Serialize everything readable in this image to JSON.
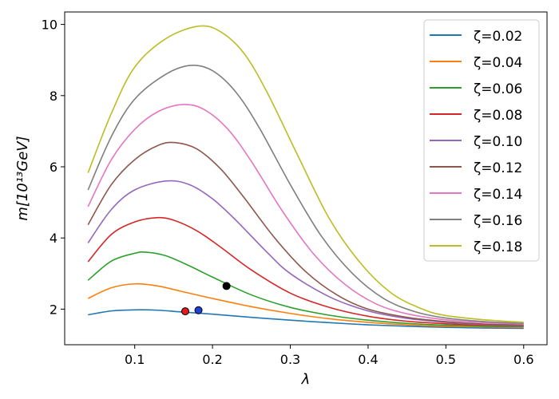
{
  "chart_data": {
    "type": "line",
    "xlabel": "λ",
    "ylabel": "m[10¹³GeV]",
    "xlim": [
      0.01,
      0.63
    ],
    "ylim": [
      1.0,
      10.35
    ],
    "x_ticks": [
      0.1,
      0.2,
      0.3,
      0.4,
      0.5,
      0.6
    ],
    "x_tick_labels": [
      "0.1",
      "0.2",
      "0.3",
      "0.4",
      "0.5",
      "0.6"
    ],
    "y_ticks": [
      2,
      4,
      6,
      8,
      10
    ],
    "y_tick_labels": [
      "2",
      "4",
      "6",
      "8",
      "10"
    ],
    "legend_position": "top-right",
    "series": [
      {
        "name": "ζ=0.02",
        "color": "#1f77b4",
        "x": [
          0.04,
          0.07,
          0.1,
          0.13,
          0.16,
          0.2,
          0.25,
          0.3,
          0.35,
          0.4,
          0.45,
          0.5,
          0.55,
          0.6
        ],
        "y": [
          1.84,
          1.95,
          1.98,
          1.97,
          1.92,
          1.86,
          1.77,
          1.69,
          1.62,
          1.56,
          1.52,
          1.49,
          1.47,
          1.46
        ]
      },
      {
        "name": "ζ=0.04",
        "color": "#ff7f0e",
        "x": [
          0.04,
          0.07,
          0.1,
          0.13,
          0.16,
          0.2,
          0.25,
          0.3,
          0.35,
          0.4,
          0.45,
          0.5,
          0.55,
          0.6
        ],
        "y": [
          2.3,
          2.6,
          2.71,
          2.65,
          2.5,
          2.3,
          2.07,
          1.88,
          1.73,
          1.63,
          1.56,
          1.52,
          1.5,
          1.49
        ]
      },
      {
        "name": "ζ=0.06",
        "color": "#2ca02c",
        "x": [
          0.04,
          0.07,
          0.1,
          0.115,
          0.14,
          0.17,
          0.2,
          0.25,
          0.3,
          0.35,
          0.4,
          0.45,
          0.5,
          0.55,
          0.6
        ],
        "y": [
          2.81,
          3.35,
          3.57,
          3.6,
          3.5,
          3.22,
          2.9,
          2.4,
          2.05,
          1.83,
          1.69,
          1.6,
          1.55,
          1.52,
          1.51
        ]
      },
      {
        "name": "ζ=0.08",
        "color": "#d62728",
        "x": [
          0.04,
          0.07,
          0.1,
          0.128,
          0.15,
          0.18,
          0.21,
          0.25,
          0.3,
          0.35,
          0.4,
          0.45,
          0.5,
          0.55,
          0.6
        ],
        "y": [
          3.33,
          4.1,
          4.45,
          4.57,
          4.5,
          4.2,
          3.75,
          3.1,
          2.45,
          2.05,
          1.8,
          1.66,
          1.59,
          1.55,
          1.53
        ]
      },
      {
        "name": "ζ=0.10",
        "color": "#9467bd",
        "x": [
          0.04,
          0.07,
          0.1,
          0.14,
          0.17,
          0.2,
          0.23,
          0.27,
          0.3,
          0.35,
          0.4,
          0.45,
          0.5,
          0.55,
          0.6
        ],
        "y": [
          3.86,
          4.8,
          5.35,
          5.6,
          5.5,
          5.1,
          4.5,
          3.6,
          3.0,
          2.35,
          1.95,
          1.74,
          1.63,
          1.57,
          1.54
        ]
      },
      {
        "name": "ζ=0.12",
        "color": "#8c564b",
        "x": [
          0.04,
          0.07,
          0.1,
          0.13,
          0.152,
          0.18,
          0.21,
          0.24,
          0.28,
          0.32,
          0.36,
          0.4,
          0.45,
          0.5,
          0.55,
          0.6
        ],
        "y": [
          4.37,
          5.5,
          6.2,
          6.6,
          6.68,
          6.5,
          5.95,
          5.15,
          4.0,
          3.05,
          2.4,
          2.0,
          1.77,
          1.65,
          1.58,
          1.56
        ]
      },
      {
        "name": "ζ=0.14",
        "color": "#e377c2",
        "x": [
          0.04,
          0.07,
          0.1,
          0.13,
          0.163,
          0.19,
          0.22,
          0.25,
          0.29,
          0.33,
          0.37,
          0.41,
          0.45,
          0.5,
          0.55,
          0.6
        ],
        "y": [
          4.88,
          6.2,
          7.05,
          7.55,
          7.75,
          7.6,
          7.05,
          6.15,
          4.75,
          3.55,
          2.7,
          2.15,
          1.87,
          1.7,
          1.62,
          1.58
        ]
      },
      {
        "name": "ζ=0.16",
        "color": "#7f7f7f",
        "x": [
          0.04,
          0.07,
          0.1,
          0.14,
          0.172,
          0.2,
          0.23,
          0.26,
          0.3,
          0.34,
          0.38,
          0.42,
          0.46,
          0.5,
          0.55,
          0.6
        ],
        "y": [
          5.35,
          6.85,
          7.9,
          8.6,
          8.85,
          8.7,
          8.1,
          7.1,
          5.5,
          4.05,
          3.0,
          2.3,
          1.93,
          1.75,
          1.65,
          1.6
        ]
      },
      {
        "name": "ζ=0.18",
        "color": "#bcbd22",
        "x": [
          0.04,
          0.07,
          0.1,
          0.14,
          0.182,
          0.21,
          0.24,
          0.27,
          0.31,
          0.35,
          0.39,
          0.43,
          0.47,
          0.5,
          0.55,
          0.6
        ],
        "y": [
          5.83,
          7.5,
          8.8,
          9.6,
          9.95,
          9.8,
          9.2,
          8.1,
          6.3,
          4.55,
          3.3,
          2.45,
          2.0,
          1.82,
          1.7,
          1.63
        ]
      }
    ],
    "points": [
      {
        "x": 0.165,
        "y": 1.94,
        "color": "#e41a1c"
      },
      {
        "x": 0.182,
        "y": 1.97,
        "color": "#1f3fd6"
      },
      {
        "x": 0.218,
        "y": 2.65,
        "color": "#000000"
      }
    ]
  }
}
